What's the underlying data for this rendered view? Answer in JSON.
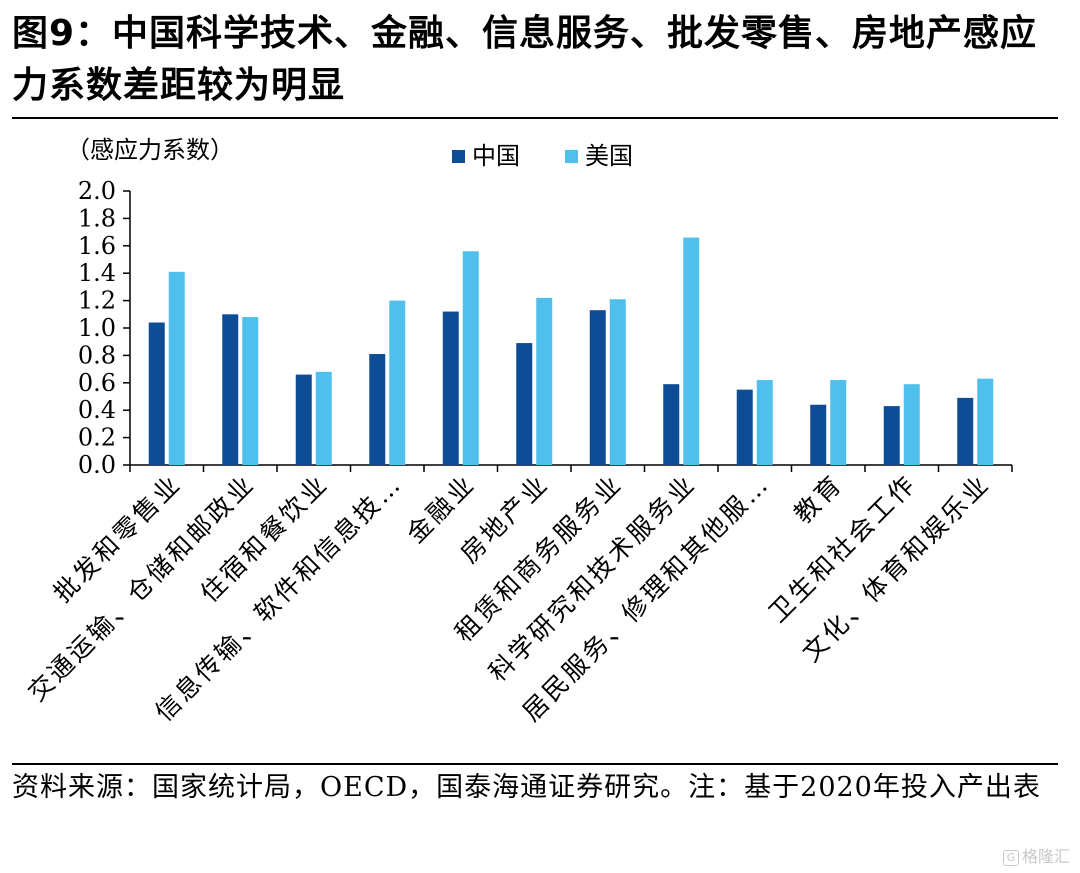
{
  "title": "图9：中国科学技术、金融、信息服务、批发零售、房地产感应力系数差距较为明显",
  "source_note": "资料来源：国家统计局，OECD，国泰海通证券研究。注：基于2020年投入产出表",
  "watermark": "格隆汇",
  "colors": {
    "china": "#0f4c96",
    "usa": "#4fc0ec"
  },
  "chart_data": {
    "type": "bar",
    "ylabel": "（感应力系数）",
    "ylim": [
      0,
      2.0
    ],
    "yticks": [
      "0.0",
      "0.2",
      "0.4",
      "0.6",
      "0.8",
      "1.0",
      "1.2",
      "1.4",
      "1.6",
      "1.8",
      "2.0"
    ],
    "grid": false,
    "legend_position": "top-center",
    "categories": [
      "批发和零售业",
      "交通运输、仓储和邮政业",
      "住宿和餐饮业",
      "信息传输、软件和信息技…",
      "金融业",
      "房地产业",
      "租赁和商务服务业",
      "科学研究和技术服务业",
      "居民服务、修理和其他服…",
      "教育",
      "卫生和社会工作",
      "文化、体育和娱乐业"
    ],
    "series": [
      {
        "name": "中国",
        "values": [
          1.04,
          1.1,
          0.66,
          0.81,
          1.12,
          0.89,
          1.13,
          0.59,
          0.55,
          0.44,
          0.43,
          0.49
        ]
      },
      {
        "name": "美国",
        "values": [
          1.41,
          1.08,
          0.68,
          1.2,
          1.56,
          1.22,
          1.21,
          1.66,
          0.62,
          0.62,
          0.59,
          0.63
        ]
      }
    ]
  }
}
